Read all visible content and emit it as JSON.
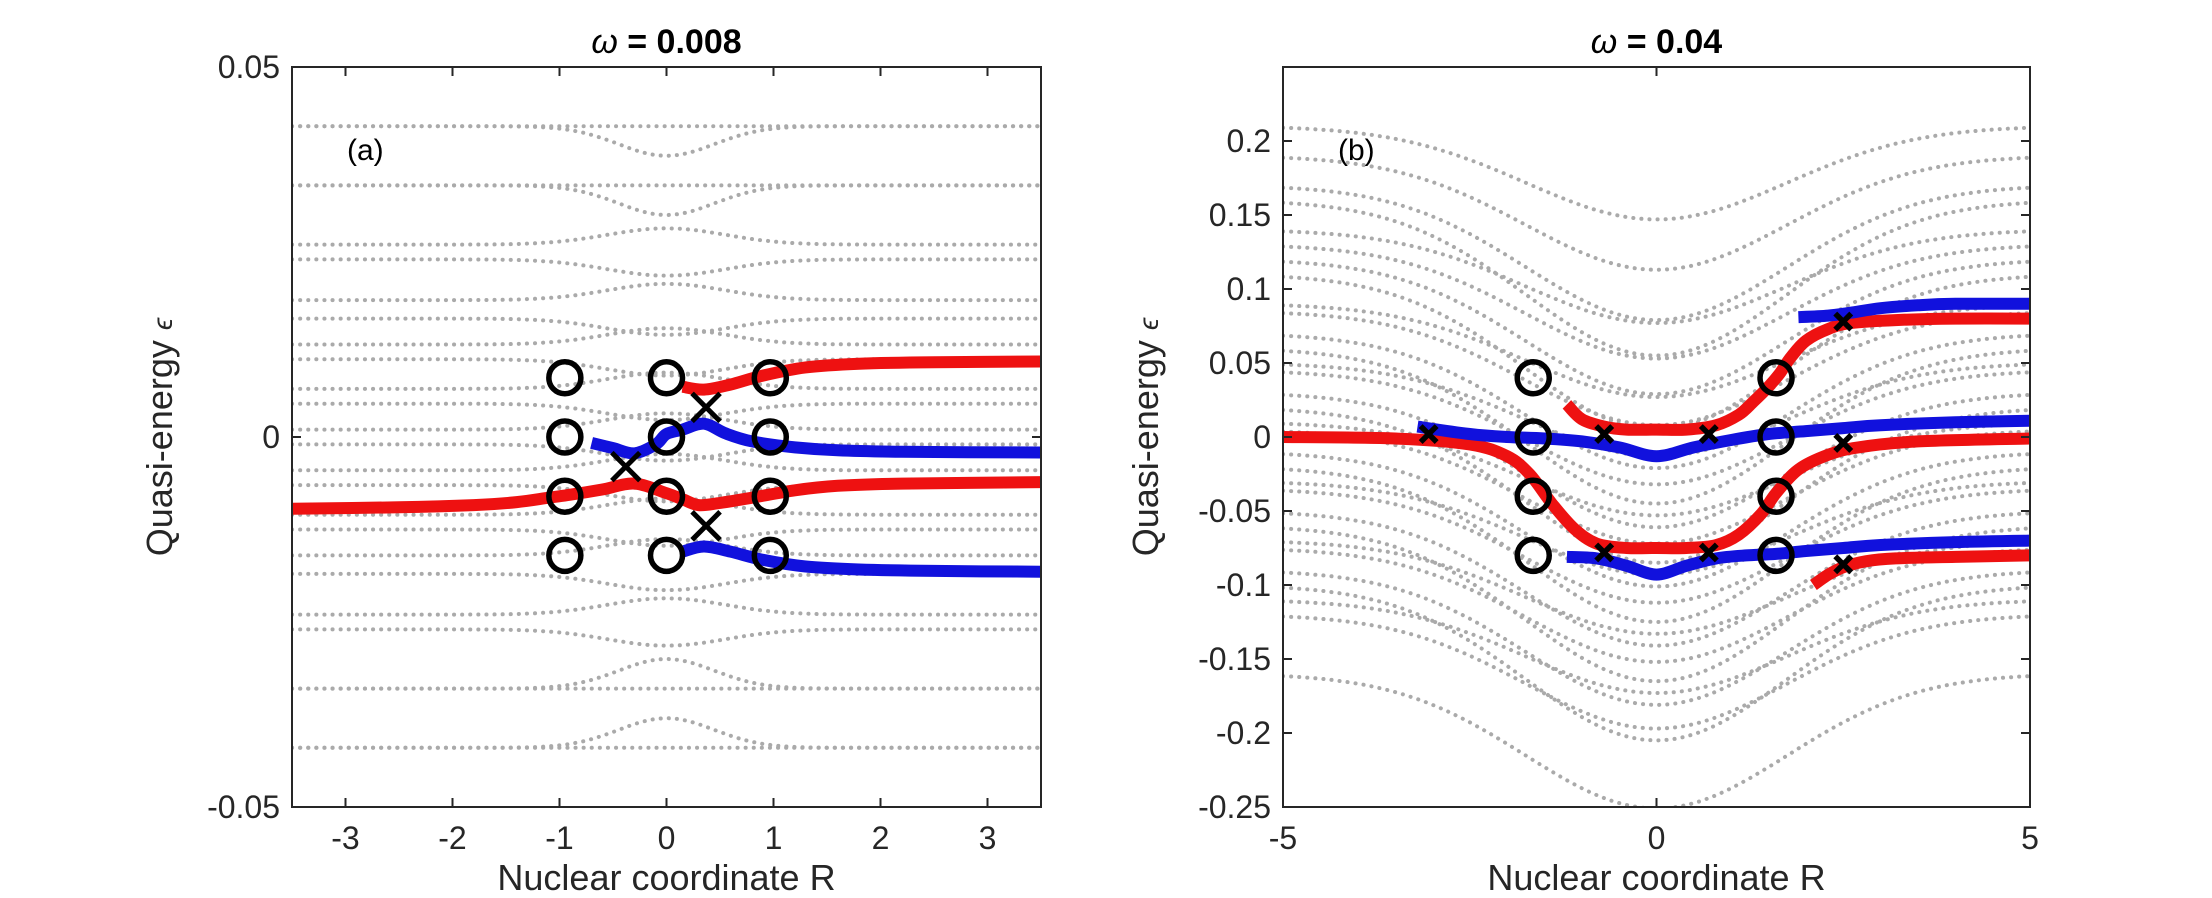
{
  "chart_data": [
    {
      "type": "line",
      "panel_label": "(a)",
      "title_symbol": "ω",
      "title_value": " = 0.008",
      "xlabel": "Nuclear coordinate R",
      "ylabel_text": "Quasi-energy ",
      "ylabel_symbol": "ϵ",
      "xlim": [
        -3.5,
        3.5
      ],
      "ylim": [
        -0.05,
        0.05
      ],
      "xticks": [
        -3,
        -2,
        -1,
        0,
        1,
        2,
        3
      ],
      "xtick_labels": [
        "-3",
        "-2",
        "-1",
        "0",
        "1",
        "2",
        "3"
      ],
      "yticks": [
        -0.05,
        0,
        0.05
      ],
      "ytick_labels": [
        "-0.05",
        "0",
        "0.05"
      ],
      "background": {
        "color": "#aaaaaa",
        "flat_levels": [
          0.042,
          0.034,
          0.026,
          0.024,
          0.0185,
          0.016,
          0.0125,
          0.0105,
          0.0065,
          0.0045,
          0.001,
          -0.001,
          -0.0045,
          -0.0065,
          -0.0105,
          -0.0125,
          -0.016,
          -0.0185,
          -0.024,
          -0.026,
          -0.034,
          -0.042
        ],
        "avoided_pairs": [
          [
            0.034,
            0.042,
            0.03,
            0.038
          ],
          [
            -0.042,
            -0.034,
            -0.038,
            -0.03
          ]
        ]
      },
      "series": [
        {
          "name": "red-lower",
          "color": "#ee1111",
          "x": [
            -3.5,
            -2.5,
            -1.8,
            -1.4,
            -1.1,
            -0.9,
            -0.6,
            -0.3,
            0,
            0.15,
            0.3,
            0.5,
            0.8,
            1.2,
            1.6,
            2.2,
            3.5
          ],
          "y": [
            -0.0097,
            -0.0095,
            -0.0092,
            -0.0088,
            -0.0082,
            -0.0078,
            -0.0071,
            -0.0063,
            -0.0076,
            -0.0084,
            -0.0092,
            -0.0089,
            -0.0082,
            -0.0072,
            -0.0066,
            -0.0063,
            -0.0061
          ]
        },
        {
          "name": "red-upper",
          "color": "#ee1111",
          "x": [
            0.15,
            0.35,
            0.6,
            0.9,
            1.3,
            1.8,
            2.5,
            3.5
          ],
          "y": [
            0.0068,
            0.0064,
            0.0071,
            0.0083,
            0.0094,
            0.0099,
            0.0101,
            0.0102
          ]
        },
        {
          "name": "blue-upper",
          "color": "#1111dd",
          "x": [
            -0.7,
            -0.5,
            -0.3,
            -0.1,
            0,
            0.15,
            0.35,
            0.55,
            0.8,
            1.2,
            1.6,
            2.2,
            3.5
          ],
          "y": [
            -0.0008,
            -0.0015,
            -0.0022,
            -0.001,
            0.0004,
            0.001,
            0.0018,
            0.0005,
            -0.0006,
            -0.0014,
            -0.0018,
            -0.002,
            -0.0021
          ]
        },
        {
          "name": "blue-lower",
          "color": "#1111dd",
          "x": [
            0.15,
            0.35,
            0.6,
            0.9,
            1.3,
            1.8,
            2.5,
            3.5
          ],
          "y": [
            -0.0155,
            -0.0148,
            -0.0155,
            -0.0166,
            -0.0175,
            -0.0179,
            -0.0181,
            -0.0182
          ]
        }
      ],
      "circles": [
        [
          -0.95,
          0.008
        ],
        [
          -0.95,
          0
        ],
        [
          -0.95,
          -0.008
        ],
        [
          -0.95,
          -0.016
        ],
        [
          0,
          0.008
        ],
        [
          0,
          0
        ],
        [
          0,
          -0.008
        ],
        [
          0,
          -0.016
        ],
        [
          0.97,
          0.008
        ],
        [
          0.97,
          0
        ],
        [
          0.97,
          -0.008
        ],
        [
          0.97,
          -0.016
        ]
      ],
      "crosses": [
        [
          0.37,
          0.004
        ],
        [
          -0.38,
          -0.004
        ],
        [
          0.37,
          -0.012
        ]
      ],
      "cross_size": "large"
    },
    {
      "type": "line",
      "panel_label": "(b)",
      "title_symbol": "ω",
      "title_value": " = 0.04",
      "xlabel": "Nuclear coordinate R",
      "ylabel_text": "Quasi-energy ",
      "ylabel_symbol": "ϵ",
      "xlim": [
        -5,
        5
      ],
      "ylim": [
        -0.25,
        0.25
      ],
      "xticks": [
        -5,
        0,
        5
      ],
      "xtick_labels": [
        "-5",
        "0",
        "5"
      ],
      "yticks": [
        -0.25,
        -0.2,
        -0.15,
        -0.1,
        -0.05,
        0,
        0.05,
        0.1,
        0.15,
        0.2
      ],
      "ytick_labels": [
        "-0.25",
        "-0.2",
        "-0.15",
        "-0.1",
        "-0.05",
        "0",
        "0.05",
        "0.1",
        "0.15",
        "0.2"
      ],
      "background": {
        "color": "#aaaaaa",
        "well_levels": [
          0.21,
          0.19,
          0.17,
          0.16,
          0.14,
          0.13,
          0.12,
          0.11,
          0.09,
          0.085,
          0.07,
          0.06,
          0.05,
          0.045,
          0.03,
          0.02,
          0.01,
          0.005,
          -0.01,
          -0.02,
          -0.03,
          -0.035,
          -0.05,
          -0.06,
          -0.07,
          -0.075,
          -0.09,
          -0.1,
          -0.11,
          -0.12,
          -0.16
        ],
        "well_depth": 0.105,
        "well_width": 1.75
      },
      "series": [
        {
          "name": "red-left",
          "color": "#ee1111",
          "x": [
            -5,
            -3.5,
            -2.5,
            -2,
            -1.7,
            -1.4,
            -1.1,
            -0.8,
            -0.4,
            0,
            0.4,
            0.8,
            1.1,
            1.4,
            1.6,
            1.9,
            2.3,
            2.7,
            3.5,
            5
          ],
          "y": [
            0,
            -0.001,
            -0.005,
            -0.013,
            -0.025,
            -0.045,
            -0.062,
            -0.072,
            -0.075,
            -0.075,
            -0.075,
            -0.073,
            -0.066,
            -0.052,
            -0.038,
            -0.022,
            -0.012,
            -0.007,
            -0.003,
            -0.001
          ]
        },
        {
          "name": "red-middle",
          "color": "#ee1111",
          "x": [
            -1.2,
            -1.0,
            -0.7,
            -0.4,
            0,
            0.4,
            0.8,
            1.1,
            1.3,
            1.5,
            1.65,
            1.8,
            2.0,
            2.3,
            2.6,
            3.2,
            4,
            5
          ],
          "y": [
            0.022,
            0.012,
            0.007,
            0.005,
            0.005,
            0.005,
            0.008,
            0.015,
            0.024,
            0.034,
            0.043,
            0.054,
            0.065,
            0.073,
            0.077,
            0.079,
            0.08,
            0.08
          ]
        },
        {
          "name": "red-bottom",
          "color": "#ee1111",
          "x": [
            2.1,
            2.3,
            2.5,
            2.8,
            3.2,
            4,
            5
          ],
          "y": [
            -0.1,
            -0.093,
            -0.088,
            -0.084,
            -0.082,
            -0.081,
            -0.08
          ]
        },
        {
          "name": "blue-middle",
          "color": "#1111dd",
          "x": [
            -3.2,
            -2.5,
            -2,
            -1.5,
            -1,
            -0.5,
            0,
            0.5,
            1,
            1.5,
            2,
            2.5,
            3,
            4,
            5
          ],
          "y": [
            0.007,
            0.002,
            0,
            -0.001,
            -0.003,
            -0.007,
            -0.013,
            -0.007,
            -0.002,
            0.002,
            0.004,
            0.006,
            0.008,
            0.01,
            0.011
          ]
        },
        {
          "name": "blue-bottom",
          "color": "#1111dd",
          "x": [
            -1.2,
            -0.8,
            -0.4,
            0,
            0.4,
            0.8,
            1.2,
            1.6,
            2,
            2.5,
            3,
            4,
            5
          ],
          "y": [
            -0.081,
            -0.082,
            -0.087,
            -0.093,
            -0.087,
            -0.082,
            -0.08,
            -0.079,
            -0.077,
            -0.075,
            -0.073,
            -0.071,
            -0.07
          ]
        },
        {
          "name": "blue-top",
          "color": "#1111dd",
          "x": [
            1.9,
            2.3,
            2.6,
            3,
            3.5,
            4,
            5
          ],
          "y": [
            0.081,
            0.082,
            0.084,
            0.087,
            0.089,
            0.09,
            0.09
          ]
        }
      ],
      "circles": [
        [
          -1.65,
          0.04
        ],
        [
          -1.65,
          0
        ],
        [
          -1.65,
          -0.04
        ],
        [
          -1.65,
          -0.08
        ],
        [
          1.6,
          0.04
        ],
        [
          1.6,
          0
        ],
        [
          1.6,
          -0.04
        ],
        [
          1.6,
          -0.08
        ]
      ],
      "crosses": [
        [
          -3.05,
          0.002
        ],
        [
          -0.7,
          0.002
        ],
        [
          0.7,
          0.002
        ],
        [
          -0.7,
          -0.078
        ],
        [
          0.7,
          -0.078
        ],
        [
          2.5,
          0.078
        ],
        [
          2.5,
          -0.004
        ],
        [
          2.5,
          -0.086
        ]
      ],
      "cross_size": "small"
    }
  ]
}
